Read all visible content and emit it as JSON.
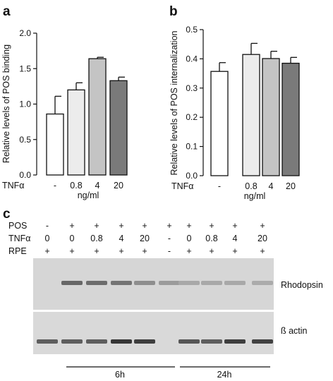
{
  "panels": {
    "a": "a",
    "b": "b",
    "c": "c"
  },
  "chart_data": [
    {
      "type": "bar",
      "panel": "a",
      "ylabel": "Relative levels of POS binding",
      "ylim": [
        0,
        2.0
      ],
      "yticks": [
        "0.0",
        "0.5",
        "1.0",
        "1.5",
        "2.0"
      ],
      "xlabel_row": "TNFα",
      "xunit": "ng/ml",
      "categories": [
        "-",
        "0.8",
        "4",
        "20"
      ],
      "values": [
        0.86,
        1.2,
        1.64,
        1.33
      ],
      "errors": [
        0.25,
        0.1,
        0.02,
        0.05
      ],
      "colors": [
        "#ffffff",
        "#ececec",
        "#c4c4c4",
        "#7a7a7a"
      ],
      "grid": false
    },
    {
      "type": "bar",
      "panel": "b",
      "ylabel": "Relative levels of POS internalization",
      "ylim": [
        0,
        0.5
      ],
      "yticks": [
        "0.0",
        "0.1",
        "0.2",
        "0.3",
        "0.4",
        "0.5"
      ],
      "xlabel_row": "TNFα",
      "xunit": "ng/ml",
      "categories": [
        "-",
        "0.8",
        "4",
        "20"
      ],
      "values": [
        0.357,
        0.415,
        0.401,
        0.385
      ],
      "errors": [
        0.03,
        0.038,
        0.025,
        0.02
      ],
      "colors": [
        "#ffffff",
        "#ececec",
        "#c4c4c4",
        "#7a7a7a"
      ],
      "grid": false
    }
  ],
  "blot": {
    "row_labels": [
      "POS",
      "TNFα",
      "RPE"
    ],
    "lanes": [
      {
        "pos": "-",
        "tnf": "0",
        "rpe": "+"
      },
      {
        "pos": "+",
        "tnf": "0",
        "rpe": "+"
      },
      {
        "pos": "+",
        "tnf": "0.8",
        "rpe": "+"
      },
      {
        "pos": "+",
        "tnf": "4",
        "rpe": "+"
      },
      {
        "pos": "+",
        "tnf": "20",
        "rpe": "+"
      },
      {
        "pos": "+",
        "tnf": "-",
        "rpe": "-"
      },
      {
        "pos": "+",
        "tnf": "0",
        "rpe": "+"
      },
      {
        "pos": "+",
        "tnf": "0.8",
        "rpe": "+"
      },
      {
        "pos": "+",
        "tnf": "4",
        "rpe": "+"
      },
      {
        "pos": "+",
        "tnf": "20",
        "rpe": "+"
      }
    ],
    "band_labels": {
      "top": "Rhodopsin",
      "bottom": "ß actin"
    },
    "time_labels": {
      "first": "6h",
      "second": "24h"
    },
    "rhodopsin_intensity": [
      0.0,
      0.75,
      0.7,
      0.65,
      0.45,
      0.35,
      0.25,
      0.25,
      0.25,
      0.22
    ],
    "actin_intensity": [
      0.6,
      0.6,
      0.6,
      0.85,
      0.8,
      0.0,
      0.65,
      0.6,
      0.8,
      0.78
    ]
  }
}
